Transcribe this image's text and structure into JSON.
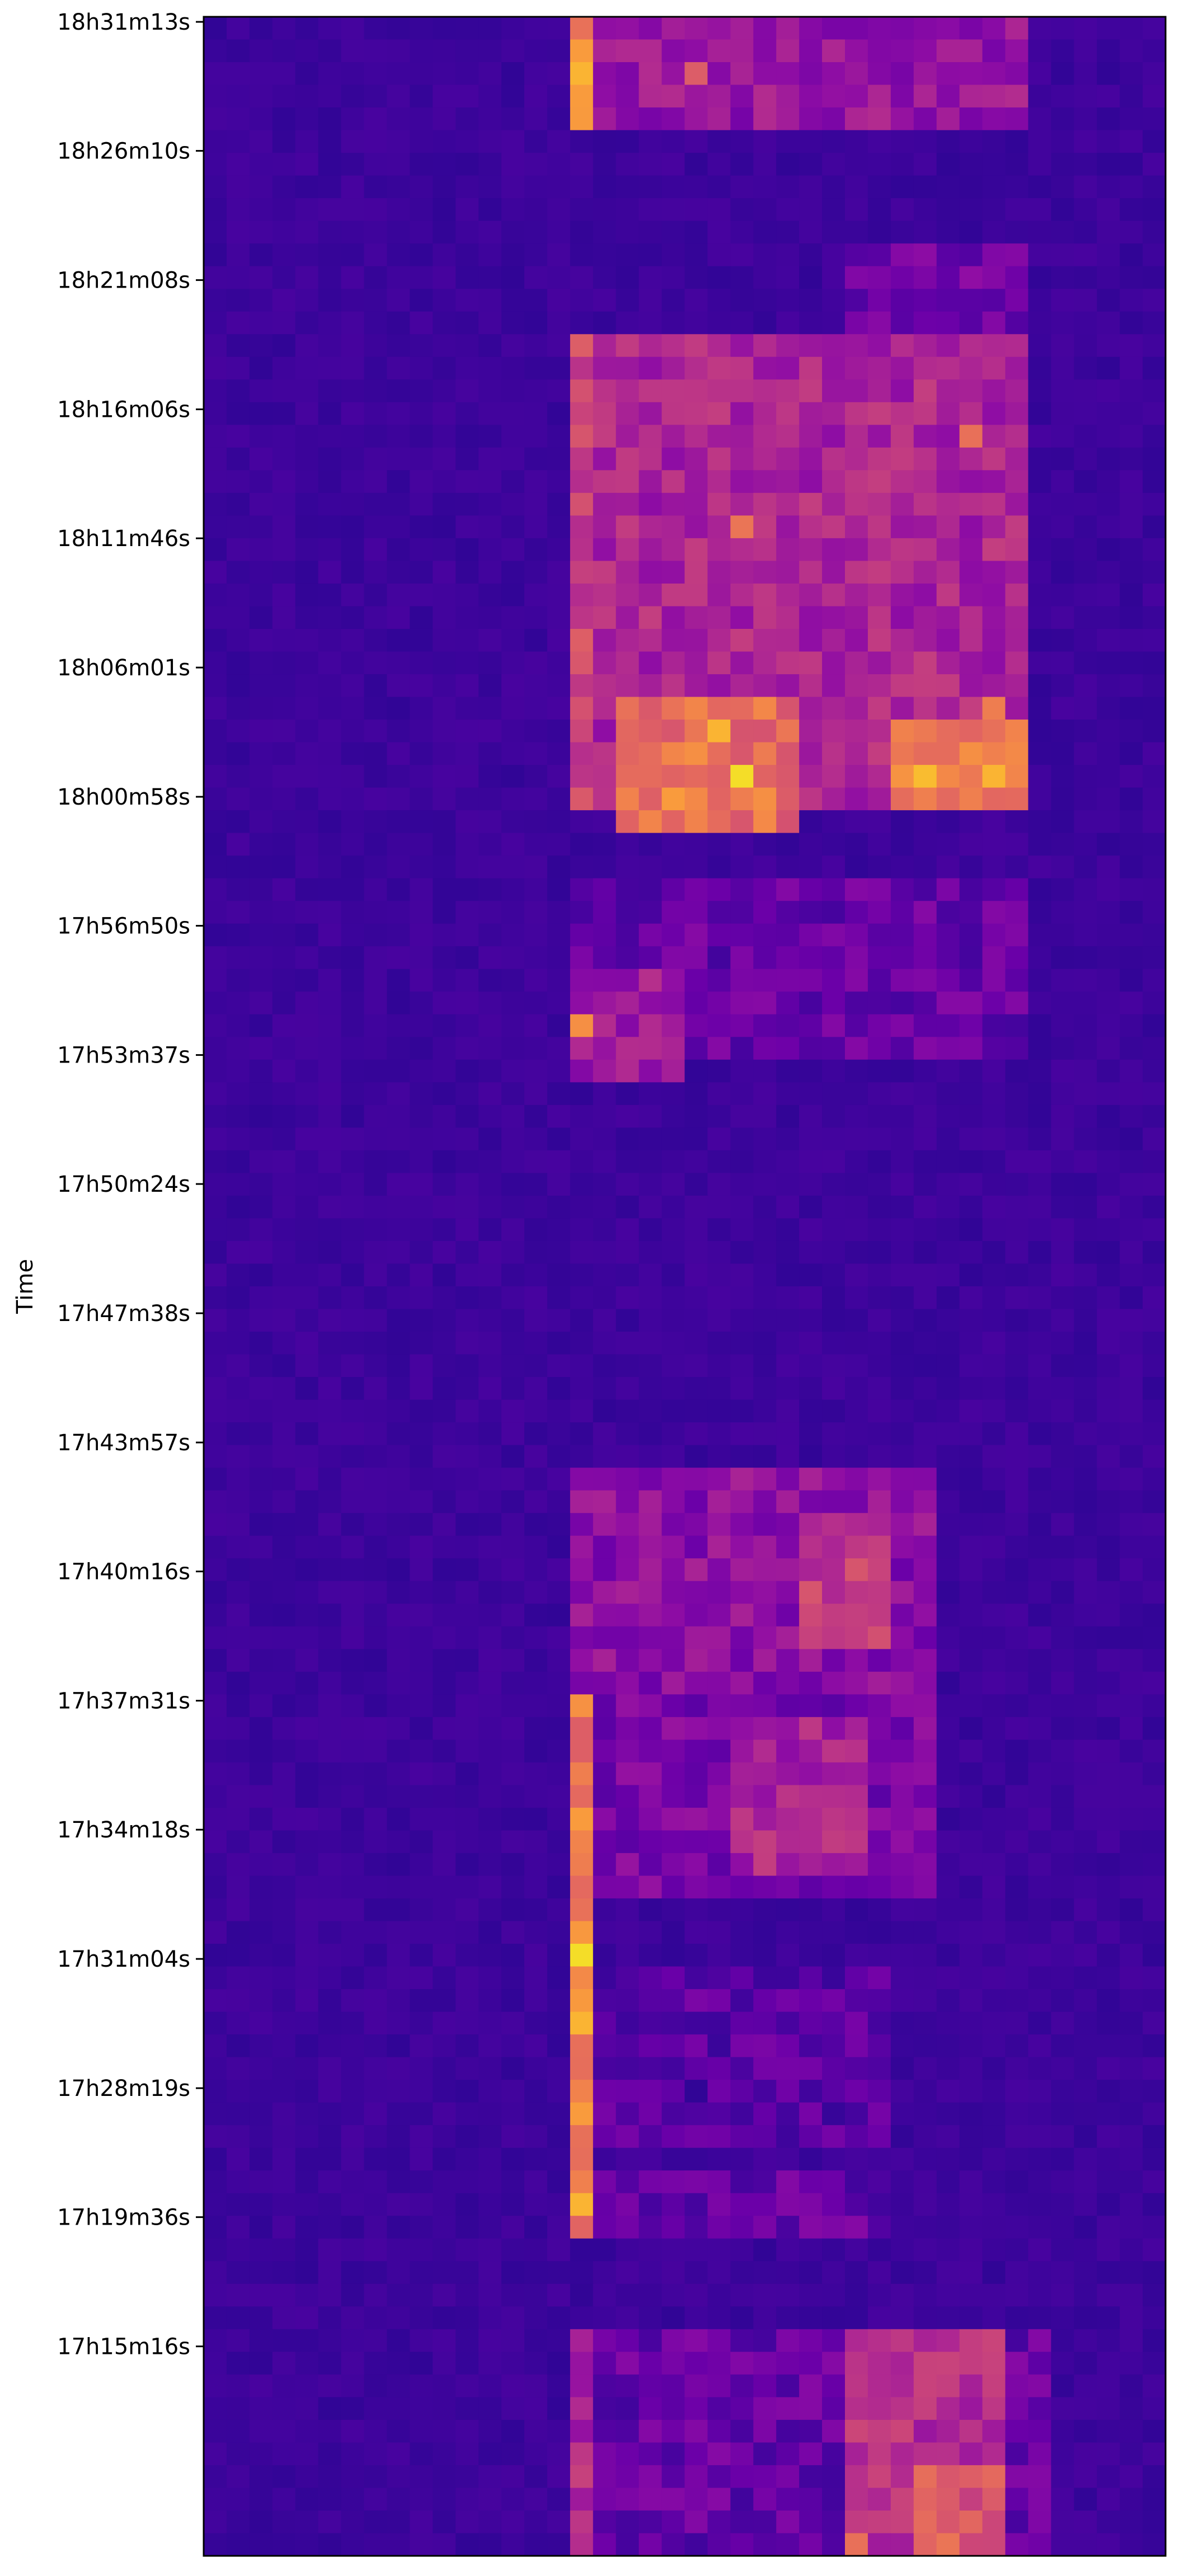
{
  "chart_data": {
    "type": "heatmap",
    "title": "",
    "xlabel": "",
    "ylabel": "Time",
    "colormap": "plasma",
    "value_range": [
      0,
      1
    ],
    "grid": false,
    "x_ticks": [],
    "y_ticks": [
      "18h31m13s",
      "18h26m10s",
      "18h21m08s",
      "18h16m06s",
      "18h11m46s",
      "18h06m01s",
      "18h00m58s",
      "17h56m50s",
      "17h53m37s",
      "17h50m24s",
      "17h47m38s",
      "17h43m57s",
      "17h40m16s",
      "17h37m31s",
      "17h34m18s",
      "17h31m04s",
      "17h28m19s",
      "17h19m36s",
      "17h15m16s"
    ],
    "n_rows": 112,
    "n_cols": 42,
    "background_level": 0.12,
    "blocks": [
      {
        "rows": [
          0,
          4
        ],
        "cols": [
          16,
          35
        ],
        "level": 0.4,
        "note": "top block"
      },
      {
        "rows": [
          0,
          4
        ],
        "cols": [
          16,
          16
        ],
        "level": 0.85
      },
      {
        "rows": [
          10,
          13
        ],
        "cols": [
          28,
          35
        ],
        "level": 0.28
      },
      {
        "rows": [
          14,
          34
        ],
        "cols": [
          16,
          35
        ],
        "level": 0.48
      },
      {
        "rows": [
          14,
          34
        ],
        "cols": [
          16,
          16
        ],
        "level": 0.62
      },
      {
        "rows": [
          30,
          35
        ],
        "cols": [
          18,
          25
        ],
        "level": 0.78
      },
      {
        "rows": [
          31,
          34
        ],
        "cols": [
          30,
          35
        ],
        "level": 0.85
      },
      {
        "rows": [
          38,
          45
        ],
        "cols": [
          16,
          35
        ],
        "level": 0.24
      },
      {
        "rows": [
          42,
          46
        ],
        "cols": [
          16,
          20
        ],
        "level": 0.42
      },
      {
        "rows": [
          44,
          44
        ],
        "cols": [
          16,
          16
        ],
        "level": 0.8
      },
      {
        "rows": [
          64,
          73
        ],
        "cols": [
          16,
          31
        ],
        "level": 0.36
      },
      {
        "rows": [
          66,
          71
        ],
        "cols": [
          26,
          29
        ],
        "level": 0.58
      },
      {
        "rows": [
          74,
          82
        ],
        "cols": [
          17,
          31
        ],
        "level": 0.3
      },
      {
        "rows": [
          75,
          81
        ],
        "cols": [
          23,
          28
        ],
        "level": 0.48
      },
      {
        "rows": [
          74,
          97
        ],
        "cols": [
          16,
          16
        ],
        "level": 0.82
      },
      {
        "rows": [
          86,
          93
        ],
        "cols": [
          17,
          29
        ],
        "level": 0.2
      },
      {
        "rows": [
          95,
          97
        ],
        "cols": [
          17,
          29
        ],
        "level": 0.24
      },
      {
        "rows": [
          102,
          112
        ],
        "cols": [
          16,
          36
        ],
        "level": 0.24
      },
      {
        "rows": [
          102,
          112
        ],
        "cols": [
          16,
          16
        ],
        "level": 0.5
      },
      {
        "rows": [
          102,
          112
        ],
        "cols": [
          28,
          34
        ],
        "level": 0.52
      },
      {
        "rows": [
          108,
          112
        ],
        "cols": [
          31,
          34
        ],
        "level": 0.68
      }
    ],
    "hotspots": [
      {
        "row": 1,
        "col": 16,
        "level": 0.92
      },
      {
        "row": 2,
        "col": 16,
        "level": 0.95
      },
      {
        "row": 3,
        "col": 16,
        "level": 0.92
      },
      {
        "row": 2,
        "col": 21,
        "level": 0.72
      },
      {
        "row": 31,
        "col": 22,
        "level": 0.95
      },
      {
        "row": 32,
        "col": 21,
        "level": 0.9
      },
      {
        "row": 34,
        "col": 20,
        "level": 0.92
      },
      {
        "row": 33,
        "col": 23,
        "level": 0.98
      },
      {
        "row": 34,
        "col": 24,
        "level": 0.9
      },
      {
        "row": 33,
        "col": 34,
        "level": 0.95
      },
      {
        "row": 32,
        "col": 33,
        "level": 0.9
      },
      {
        "row": 30,
        "col": 34,
        "level": 0.85
      },
      {
        "row": 22,
        "col": 23,
        "level": 0.82
      },
      {
        "row": 18,
        "col": 33,
        "level": 0.8
      },
      {
        "row": 44,
        "col": 16,
        "level": 0.9
      },
      {
        "row": 79,
        "col": 16,
        "level": 0.92
      },
      {
        "row": 85,
        "col": 16,
        "level": 0.98
      },
      {
        "row": 88,
        "col": 16,
        "level": 0.95
      },
      {
        "row": 92,
        "col": 16,
        "level": 0.92
      },
      {
        "row": 96,
        "col": 16,
        "level": 0.95
      },
      {
        "row": 111,
        "col": 28,
        "level": 0.8
      },
      {
        "row": 111,
        "col": 32,
        "level": 0.82
      }
    ]
  }
}
